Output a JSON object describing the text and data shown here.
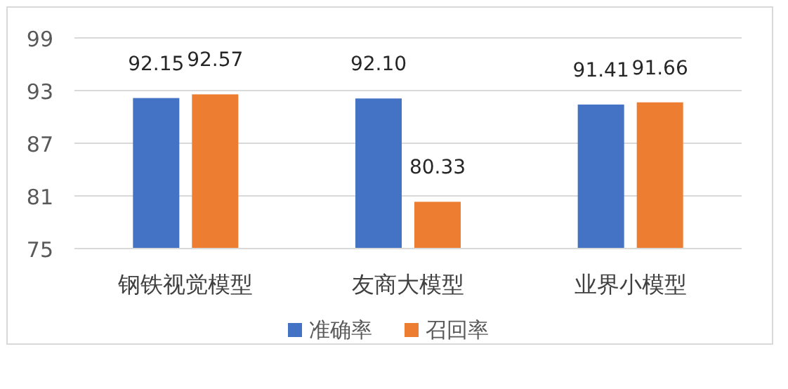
{
  "chart_data": {
    "type": "bar",
    "categories": [
      "钢铁视觉模型",
      "友商大模型",
      "业界小模型"
    ],
    "series": [
      {
        "name": "准确率",
        "color": "#4472c4",
        "values": [
          92.15,
          92.1,
          91.41
        ],
        "value_labels": [
          "92.15",
          "92.10",
          "91.41"
        ]
      },
      {
        "name": "召回率",
        "color": "#ed7d31",
        "values": [
          92.57,
          80.33,
          91.66
        ],
        "value_labels": [
          "92.57",
          "80.33",
          "91.66"
        ]
      }
    ],
    "ylim": [
      75,
      99
    ],
    "yticks": [
      75,
      81,
      87,
      93,
      99
    ],
    "grid": "y",
    "legend": "bottom"
  }
}
